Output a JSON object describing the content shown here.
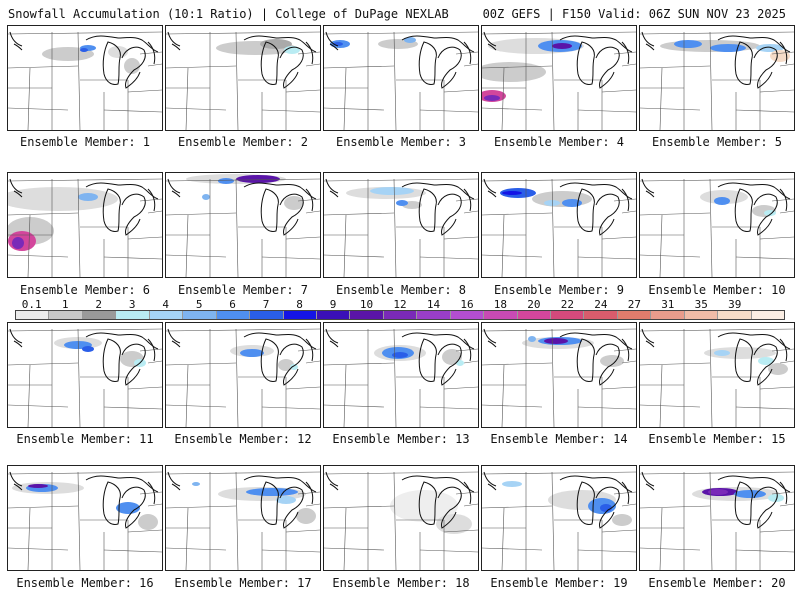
{
  "header": {
    "left": "Snowfall Accumulation (10:1 Ratio) | College of DuPage NEXLAB",
    "right": "00Z GEFS | F150 Valid: 06Z SUN NOV 23 2025"
  },
  "colorbar": {
    "labels": [
      "0.1",
      "1",
      "2",
      "3",
      "4",
      "5",
      "6",
      "7",
      "8",
      "9",
      "10",
      "12",
      "14",
      "16",
      "18",
      "20",
      "22",
      "24",
      "27",
      "31",
      "35",
      "39"
    ],
    "colors": [
      "#ececec",
      "#c8c8c8",
      "#9a9a9a",
      "#b9ecf3",
      "#a6d3f5",
      "#7fb4f0",
      "#4f8ff0",
      "#2a5ee8",
      "#1414e6",
      "#3a10b8",
      "#5a14a8",
      "#7a2ab8",
      "#9a3ec8",
      "#b44ed0",
      "#c84ab4",
      "#d2469c",
      "#d44a7c",
      "#d85c6c",
      "#e07c6c",
      "#e89c8c",
      "#f0bca8",
      "#f6dcc8",
      "#fbeee4"
    ]
  },
  "members": [
    {
      "label": "Ensemble Member: 1"
    },
    {
      "label": "Ensemble Member: 2"
    },
    {
      "label": "Ensemble Member: 3"
    },
    {
      "label": "Ensemble Member: 4"
    },
    {
      "label": "Ensemble Member: 5"
    },
    {
      "label": "Ensemble Member: 6"
    },
    {
      "label": "Ensemble Member: 7"
    },
    {
      "label": "Ensemble Member: 8"
    },
    {
      "label": "Ensemble Member: 9"
    },
    {
      "label": "Ensemble Member: 10"
    },
    {
      "label": "Ensemble Member: 11"
    },
    {
      "label": "Ensemble Member: 12"
    },
    {
      "label": "Ensemble Member: 13"
    },
    {
      "label": "Ensemble Member: 14"
    },
    {
      "label": "Ensemble Member: 15"
    },
    {
      "label": "Ensemble Member: 16"
    },
    {
      "label": "Ensemble Member: 17"
    },
    {
      "label": "Ensemble Member: 18"
    },
    {
      "label": "Ensemble Member: 19"
    },
    {
      "label": "Ensemble Member: 20"
    }
  ]
}
